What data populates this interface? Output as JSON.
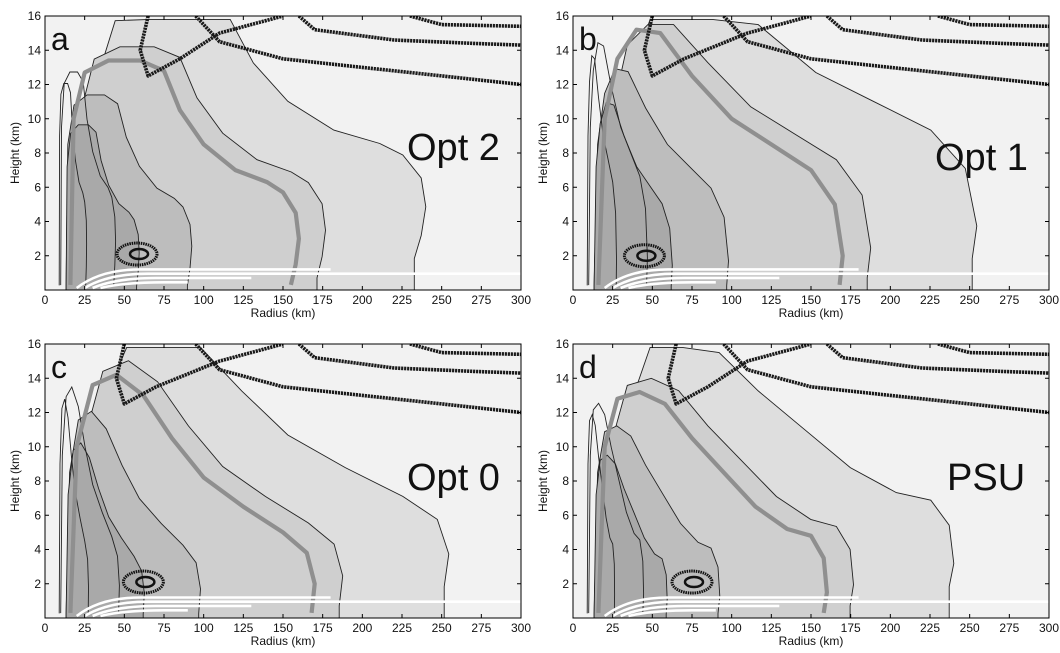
{
  "chart_data": [
    {
      "type": "contour",
      "panel_letter": "a",
      "label": "Opt 2",
      "xlabel": "Radius (km)",
      "ylabel": "Height (km)",
      "xlim": [
        0,
        300
      ],
      "ylim": [
        0,
        16
      ],
      "xticks": [
        0,
        25,
        50,
        75,
        100,
        125,
        150,
        175,
        200,
        225,
        250,
        275,
        300
      ],
      "yticks": [
        2,
        4,
        6,
        8,
        10,
        12,
        14,
        16
      ],
      "gray_contour_extent": [
        [
          16,
          0.3
        ],
        [
          18,
          10
        ],
        [
          25,
          12.7
        ],
        [
          40,
          13.4
        ],
        [
          60,
          13.4
        ],
        [
          75,
          12.8
        ],
        [
          85,
          10.5
        ],
        [
          100,
          8.5
        ],
        [
          120,
          7.0
        ],
        [
          140,
          6.3
        ],
        [
          150,
          5.7
        ],
        [
          158,
          4.5
        ],
        [
          160,
          3.0
        ],
        [
          158,
          1.5
        ],
        [
          155,
          0.3
        ]
      ],
      "max_wind_core": [
        58,
        2.1
      ]
    },
    {
      "type": "contour",
      "panel_letter": "b",
      "label": "Opt 1",
      "xlabel": "Radius (km)",
      "ylabel": "Height (km)",
      "xlim": [
        0,
        300
      ],
      "ylim": [
        0,
        16
      ],
      "xticks": [
        0,
        25,
        50,
        75,
        100,
        125,
        150,
        175,
        200,
        225,
        250,
        275,
        300
      ],
      "yticks": [
        2,
        4,
        6,
        8,
        10,
        12,
        14,
        16
      ],
      "gray_contour_extent": [
        [
          16,
          0.3
        ],
        [
          20,
          10
        ],
        [
          28,
          13.5
        ],
        [
          40,
          15.2
        ],
        [
          55,
          15.0
        ],
        [
          75,
          12.5
        ],
        [
          100,
          10.0
        ],
        [
          125,
          8.5
        ],
        [
          150,
          7.0
        ],
        [
          165,
          5.0
        ],
        [
          170,
          2.0
        ],
        [
          168,
          0.3
        ]
      ],
      "max_wind_core": [
        45,
        2.0
      ]
    },
    {
      "type": "contour",
      "panel_letter": "c",
      "label": "Opt 0",
      "xlabel": "Radius (km)",
      "ylabel": "Height (km)",
      "xlim": [
        0,
        300
      ],
      "ylim": [
        0,
        16
      ],
      "xticks": [
        0,
        25,
        50,
        75,
        100,
        125,
        150,
        175,
        200,
        225,
        250,
        275,
        300
      ],
      "yticks": [
        2,
        4,
        6,
        8,
        10,
        12,
        14,
        16
      ],
      "gray_contour_extent": [
        [
          16,
          0.3
        ],
        [
          20,
          10
        ],
        [
          30,
          13.6
        ],
        [
          45,
          14.2
        ],
        [
          62,
          13.0
        ],
        [
          80,
          10.5
        ],
        [
          100,
          8.2
        ],
        [
          125,
          6.5
        ],
        [
          150,
          5.0
        ],
        [
          165,
          3.8
        ],
        [
          170,
          2.0
        ],
        [
          168,
          0.3
        ]
      ],
      "max_wind_core": [
        62,
        2.1
      ]
    },
    {
      "type": "contour",
      "panel_letter": "d",
      "label": "PSU",
      "xlabel": "Radius (km)",
      "ylabel": "Height (km)",
      "xlim": [
        0,
        300
      ],
      "ylim": [
        0,
        16
      ],
      "xticks": [
        0,
        25,
        50,
        75,
        100,
        125,
        150,
        175,
        200,
        225,
        250,
        275,
        300
      ],
      "yticks": [
        2,
        4,
        6,
        8,
        10,
        12,
        14,
        16
      ],
      "gray_contour_extent": [
        [
          16,
          0.3
        ],
        [
          20,
          10
        ],
        [
          28,
          12.8
        ],
        [
          42,
          13.2
        ],
        [
          58,
          12.5
        ],
        [
          75,
          10.5
        ],
        [
          95,
          8.5
        ],
        [
          115,
          6.5
        ],
        [
          135,
          5.2
        ],
        [
          150,
          4.8
        ],
        [
          158,
          3.5
        ],
        [
          160,
          1.5
        ],
        [
          158,
          0.3
        ]
      ],
      "max_wind_core": [
        75,
        2.1
      ]
    }
  ]
}
